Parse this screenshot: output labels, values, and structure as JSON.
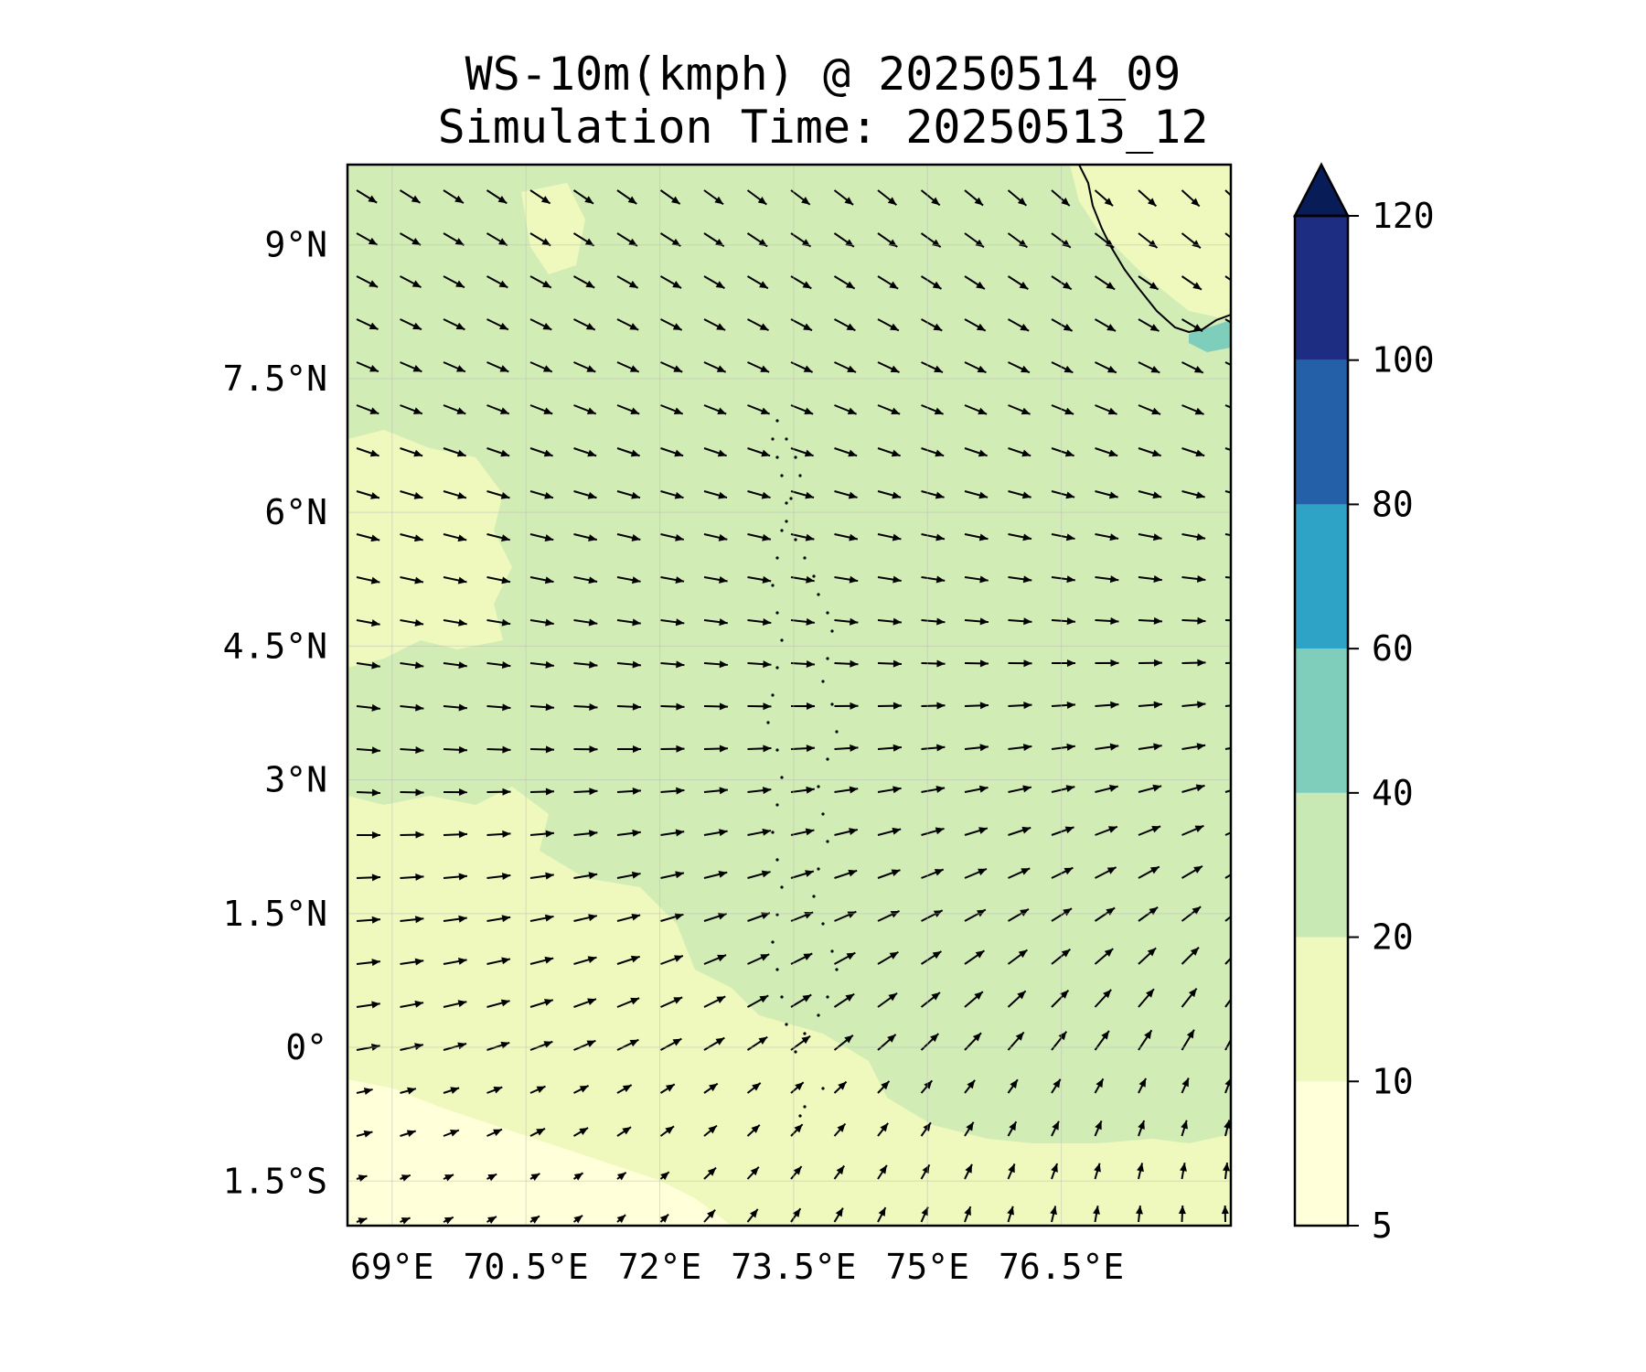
{
  "title": "WS-10m(kmph) @ 20250514_09",
  "subtitle": "Simulation Time: 20250513_12",
  "chart_data": {
    "type": "heatmap",
    "variable": "10 m wind speed with wind direction arrows",
    "x_range": [
      68.5,
      78.4
    ],
    "y_range": [
      -2.0,
      9.9
    ],
    "x_ticks": [
      {
        "value": 69,
        "label": "69°E"
      },
      {
        "value": 70.5,
        "label": "70.5°E"
      },
      {
        "value": 72,
        "label": "72°E"
      },
      {
        "value": 73.5,
        "label": "73.5°E"
      },
      {
        "value": 75,
        "label": "75°E"
      },
      {
        "value": 76.5,
        "label": "76.5°E"
      }
    ],
    "y_ticks": [
      {
        "value": 9,
        "label": "9°N"
      },
      {
        "value": 7.5,
        "label": "7.5°N"
      },
      {
        "value": 6,
        "label": "6°N"
      },
      {
        "value": 4.5,
        "label": "4.5°N"
      },
      {
        "value": 3,
        "label": "3°N"
      },
      {
        "value": 1.5,
        "label": "1.5°N"
      },
      {
        "value": 0,
        "label": "0°"
      },
      {
        "value": -1.5,
        "label": "1.5°S"
      }
    ],
    "grid": true,
    "colorbar": {
      "levels": [
        5,
        10,
        20,
        40,
        60,
        80,
        100,
        120
      ],
      "labels": [
        "5",
        "10",
        "20",
        "40",
        "60",
        "80",
        "100",
        "120"
      ],
      "colors": [
        "#ffffd9",
        "#eff9bd",
        "#c8e9b4",
        "#7fcdbb",
        "#2fa3c6",
        "#2360a8",
        "#1d2e82"
      ],
      "extend_color": "#081d58",
      "extend": "max"
    },
    "field_colors": {
      "calm": "#ffffd9",
      "light": "#eff9bd",
      "moderate": "#d2ecb6",
      "strong": "#7fcdbb"
    }
  }
}
